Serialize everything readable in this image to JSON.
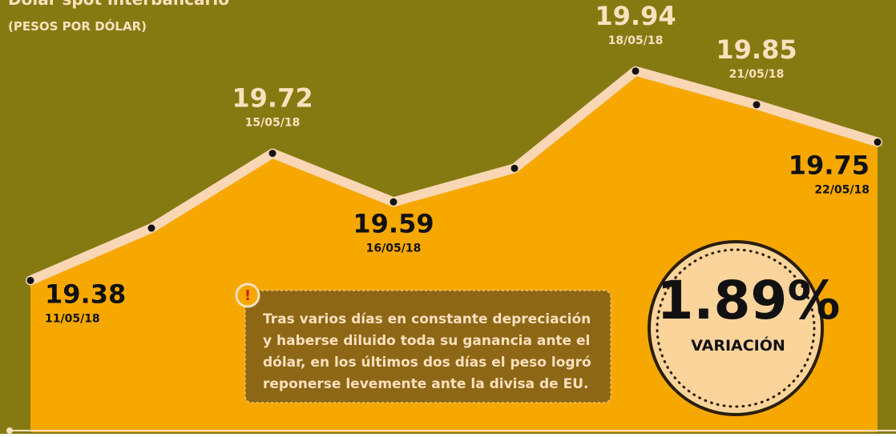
{
  "chart_data": {
    "type": "area",
    "title": "Dólar spot interbancario",
    "subtitle": "(PESOS POR DÓLAR)",
    "categories": [
      "11/05/18",
      null,
      "15/05/18",
      "16/05/18",
      null,
      "18/05/18",
      "21/05/18",
      "22/05/18"
    ],
    "values": [
      19.38,
      19.52,
      19.72,
      19.59,
      19.68,
      19.94,
      19.85,
      19.75
    ],
    "value_labels": [
      "19.38",
      null,
      "19.72",
      "19.59",
      null,
      "19.94",
      "19.85",
      "19.75"
    ],
    "color": "#f6a800",
    "line_color": "#f9d6b4",
    "ylim": [
      18.97,
      20.13
    ],
    "annotation": [
      "Tras varios días en constante depreciación",
      "y haberse diluido toda su ganancia ante el",
      "dólar, en los últimos dos días el peso logró",
      "reponerse levemente ante la divisa de EU."
    ],
    "variation": {
      "value": "1.89%",
      "label": "VARIACIÓN"
    }
  }
}
